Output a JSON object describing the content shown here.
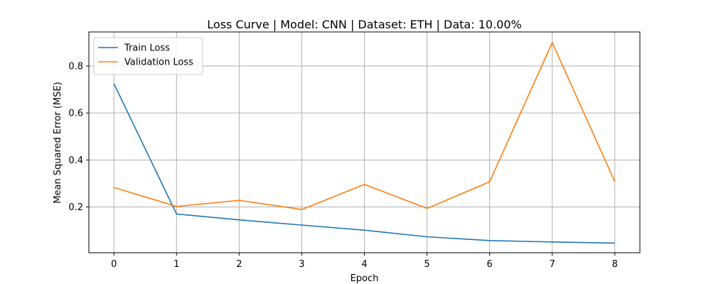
{
  "chart_data": {
    "type": "line",
    "title": "Loss Curve | Model: CNN | Dataset: ETH | Data: 10.00%",
    "xlabel": "Epoch",
    "ylabel": "Mean Squared Error (MSE)",
    "x": [
      0,
      1,
      2,
      3,
      4,
      5,
      6,
      7,
      8
    ],
    "xlim": [
      -0.4,
      8.4
    ],
    "ylim": [
      0.005,
      0.945
    ],
    "xticks": [
      0,
      1,
      2,
      3,
      4,
      5,
      6,
      7,
      8
    ],
    "yticks": [
      0.2,
      0.4,
      0.6,
      0.8
    ],
    "ytick_labels": [
      "0.2",
      "0.4",
      "0.6",
      "0.8"
    ],
    "grid": true,
    "legend_position": "top-left",
    "series": [
      {
        "name": "Train Loss",
        "color": "#1f77b4",
        "values": [
          0.725,
          0.17,
          0.145,
          0.123,
          0.101,
          0.073,
          0.057,
          0.051,
          0.046
        ]
      },
      {
        "name": "Validation Loss",
        "color": "#ff7f0e",
        "values": [
          0.283,
          0.202,
          0.228,
          0.189,
          0.296,
          0.194,
          0.307,
          0.9,
          0.307
        ]
      }
    ]
  }
}
